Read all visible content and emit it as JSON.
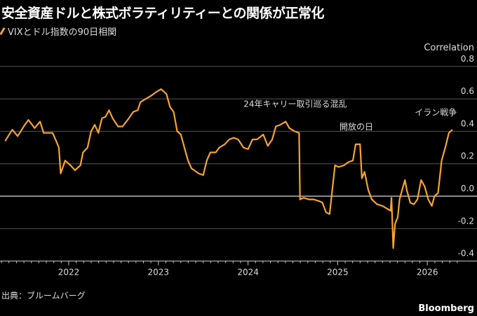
{
  "title": "安全資産ドルと株式ボラティリティーとの関係が正常化",
  "legend": {
    "label": "VIXとドル指数の90日相関",
    "color": "#f7a330"
  },
  "source": "出典：ブルームバーグ",
  "brand": "Bloomberg",
  "chart_data": {
    "type": "line",
    "title": "安全資産ドルと株式ボラティリティーとの関係が正常化",
    "ylabel": "Correlation",
    "xlabel": "",
    "ylim": [
      -0.4,
      0.8
    ],
    "xlim": [
      2021.25,
      2026.35
    ],
    "yticks": [
      "0.8",
      "0.6",
      "0.4",
      "0.2",
      "0.0",
      "-0.2",
      "-0.4"
    ],
    "ytick_values": [
      0.8,
      0.6,
      0.4,
      0.2,
      0.0,
      -0.2,
      -0.4
    ],
    "xticks": [
      "2022",
      "2023",
      "2024",
      "2025",
      "2026"
    ],
    "xtick_values": [
      2022.0,
      2023.0,
      2024.0,
      2025.0,
      2026.0
    ],
    "grid": true,
    "annotations": [
      {
        "text": "24年キャリー取引巡る混乱",
        "x": 2023.95,
        "y": 0.55
      },
      {
        "text": "開放の日",
        "x": 2025.02,
        "y": 0.41
      },
      {
        "text": "イラン戦争",
        "x": 2025.86,
        "y": 0.5
      }
    ],
    "series": [
      {
        "name": "VIXとドル指数の90日相関",
        "x": [
          2021.29,
          2021.37,
          2021.43,
          2021.51,
          2021.55,
          2021.62,
          2021.68,
          2021.72,
          2021.77,
          2021.82,
          2021.86,
          2021.89,
          2021.91,
          2021.96,
          2022.02,
          2022.07,
          2022.13,
          2022.16,
          2022.21,
          2022.25,
          2022.29,
          2022.33,
          2022.37,
          2022.41,
          2022.45,
          2022.49,
          2022.55,
          2022.6,
          2022.67,
          2022.72,
          2022.77,
          2022.8,
          2022.86,
          2022.92,
          2022.97,
          2023.03,
          2023.09,
          2023.13,
          2023.17,
          2023.21,
          2023.25,
          2023.29,
          2023.33,
          2023.37,
          2023.4,
          2023.45,
          2023.5,
          2023.54,
          2023.58,
          2023.64,
          2023.68,
          2023.74,
          2023.79,
          2023.84,
          2023.89,
          2023.95,
          2024.0,
          2024.05,
          2024.1,
          2024.17,
          2024.22,
          2024.27,
          2024.31,
          2024.36,
          2024.42,
          2024.46,
          2024.52,
          2024.57,
          2024.58,
          2024.62,
          2024.68,
          2024.73,
          2024.79,
          2024.83,
          2024.87,
          2024.91,
          2024.94,
          2024.97,
          2025.01,
          2025.07,
          2025.12,
          2025.17,
          2025.2,
          2025.25,
          2025.27,
          2025.3,
          2025.34,
          2025.38,
          2025.44,
          2025.5,
          2025.56,
          2025.59,
          2025.6,
          2025.62,
          2025.64,
          2025.67,
          2025.69,
          2025.72,
          2025.75,
          2025.77,
          2025.81,
          2025.85,
          2025.89,
          2025.93,
          2025.97,
          2026.01,
          2026.05,
          2026.08,
          2026.12,
          2026.16,
          2026.2,
          2026.24,
          2026.28
        ],
        "y": [
          0.34,
          0.41,
          0.37,
          0.44,
          0.47,
          0.42,
          0.46,
          0.39,
          0.39,
          0.39,
          0.34,
          0.3,
          0.14,
          0.22,
          0.19,
          0.16,
          0.19,
          0.27,
          0.3,
          0.4,
          0.44,
          0.39,
          0.48,
          0.49,
          0.53,
          0.48,
          0.43,
          0.43,
          0.48,
          0.52,
          0.53,
          0.58,
          0.6,
          0.62,
          0.64,
          0.66,
          0.63,
          0.55,
          0.52,
          0.4,
          0.38,
          0.3,
          0.22,
          0.17,
          0.16,
          0.14,
          0.13,
          0.22,
          0.27,
          0.27,
          0.3,
          0.32,
          0.35,
          0.36,
          0.35,
          0.3,
          0.29,
          0.35,
          0.35,
          0.38,
          0.31,
          0.35,
          0.43,
          0.44,
          0.46,
          0.42,
          0.4,
          0.39,
          -0.02,
          -0.01,
          -0.02,
          -0.02,
          -0.03,
          -0.04,
          -0.1,
          -0.11,
          0.04,
          0.19,
          0.18,
          0.19,
          0.21,
          0.22,
          0.32,
          0.32,
          0.11,
          0.15,
          0.04,
          -0.02,
          -0.05,
          -0.06,
          -0.08,
          -0.09,
          -0.01,
          -0.32,
          -0.17,
          -0.13,
          -0.02,
          0.04,
          0.1,
          0.04,
          -0.04,
          -0.05,
          -0.02,
          0.1,
          0.06,
          -0.02,
          -0.06,
          0.0,
          0.02,
          0.22,
          0.3,
          0.39,
          0.41
        ]
      }
    ]
  }
}
